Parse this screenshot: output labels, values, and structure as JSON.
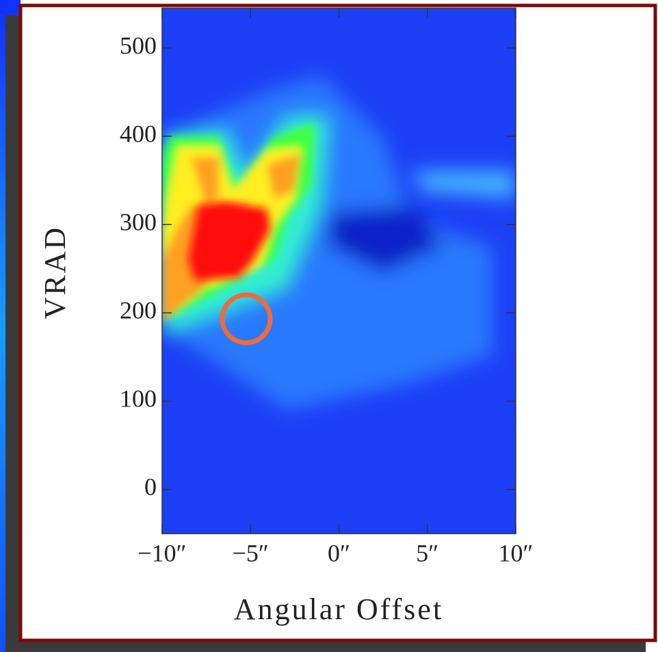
{
  "chart_data": {
    "type": "heatmap",
    "x_label": "Angular Offset",
    "y_label": "VRAD",
    "xlim": [
      -10,
      10
    ],
    "ylim": [
      -50,
      545
    ],
    "xticks": [
      {
        "value": -10,
        "label": "−10″"
      },
      {
        "value": -5,
        "label": "−5″"
      },
      {
        "value": 0,
        "label": "0″"
      },
      {
        "value": 5,
        "label": "5″"
      },
      {
        "value": 10,
        "label": "10″"
      }
    ],
    "yticks": [
      0,
      100,
      200,
      300,
      400,
      500
    ]
  }
}
